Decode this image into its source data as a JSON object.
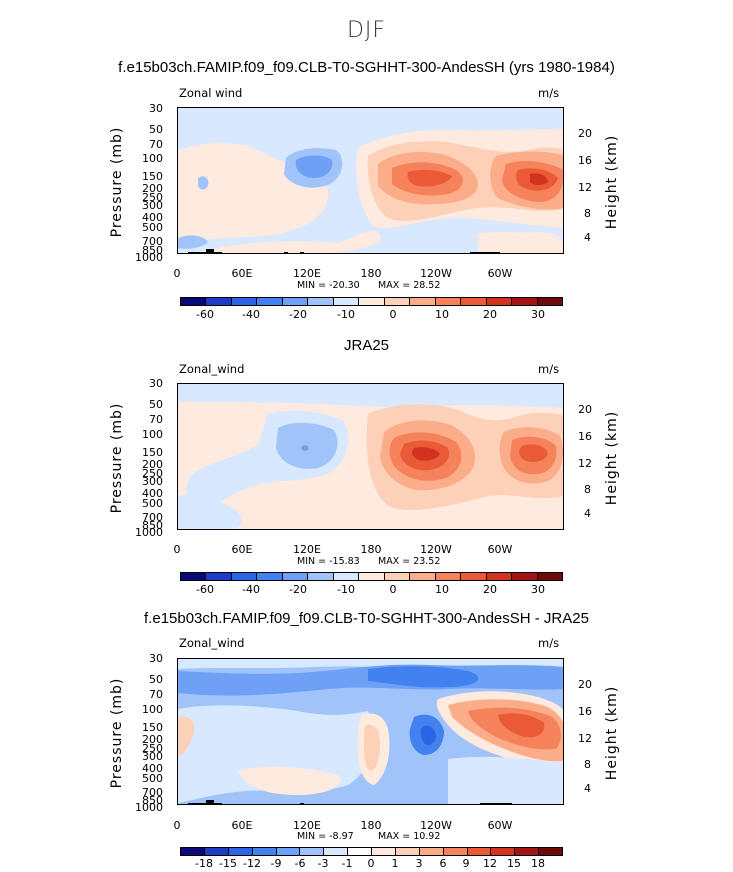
{
  "figure": {
    "title": "DJF"
  },
  "colors": {
    "neg": [
      "#0a0a78",
      "#1e3cc8",
      "#2d64e6",
      "#4182f0",
      "#6ea0f5",
      "#a0c3fa",
      "#d7e8ff"
    ],
    "pos": [
      "#ffeadf",
      "#fdd0b8",
      "#fbad8a",
      "#f5825a",
      "#ea5a37",
      "#d2321e",
      "#a51414",
      "#6e0a0a"
    ]
  },
  "chart_data": [
    {
      "type": "contour",
      "title": "f.e15b03ch.FAMIP.f09_f09.CLB-T0-SGHHT-300-AndesSH (yrs 1980-1984)",
      "left_caption": "Zonal wind",
      "units": "m/s",
      "ylabel": "Pressure (mb)",
      "ylabel_right": "Height (km)",
      "pressure_ticks": [
        "30",
        "50",
        "70",
        "100",
        "150",
        "200",
        "250",
        "300",
        "400",
        "500",
        "700",
        "850",
        "1000"
      ],
      "height_ticks": [
        "20",
        "16",
        "12",
        "8",
        "4"
      ],
      "x_ticks": [
        "0",
        "60E",
        "120E",
        "180",
        "120W",
        "60W"
      ],
      "min_label": "MIN = -20.30",
      "max_label": "MAX = 28.52",
      "min": -20.3,
      "max": 28.52,
      "colorbar_labels": [
        "-60",
        "-40",
        "-20",
        "-10",
        "0",
        "10",
        "20",
        "30"
      ]
    },
    {
      "type": "contour",
      "title": "JRA25",
      "left_caption": "Zonal_wind",
      "units": "m/s",
      "ylabel": "Pressure (mb)",
      "ylabel_right": "Height (km)",
      "pressure_ticks": [
        "30",
        "50",
        "70",
        "100",
        "150",
        "200",
        "250",
        "300",
        "400",
        "500",
        "700",
        "850",
        "1000"
      ],
      "height_ticks": [
        "20",
        "16",
        "12",
        "8",
        "4"
      ],
      "x_ticks": [
        "0",
        "60E",
        "120E",
        "180",
        "120W",
        "60W"
      ],
      "min_label": "MIN = -15.83",
      "max_label": "MAX = 23.52",
      "min": -15.83,
      "max": 23.52,
      "colorbar_labels": [
        "-60",
        "-40",
        "-20",
        "-10",
        "0",
        "10",
        "20",
        "30"
      ]
    },
    {
      "type": "contour",
      "title": "f.e15b03ch.FAMIP.f09_f09.CLB-T0-SGHHT-300-AndesSH - JRA25",
      "left_caption": "Zonal_wind",
      "units": "m/s",
      "ylabel": "Pressure (mb)",
      "ylabel_right": "Height (km)",
      "pressure_ticks": [
        "30",
        "50",
        "70",
        "100",
        "150",
        "200",
        "250",
        "300",
        "400",
        "500",
        "700",
        "850",
        "1000"
      ],
      "height_ticks": [
        "20",
        "16",
        "12",
        "8",
        "4"
      ],
      "x_ticks": [
        "0",
        "60E",
        "120E",
        "180",
        "120W",
        "60W"
      ],
      "min_label": "MIN = -8.97",
      "max_label": "MAX = 10.92",
      "min": -8.97,
      "max": 10.92,
      "colorbar_labels": [
        "-18",
        "-15",
        "-12",
        "-9",
        "-6",
        "-3",
        "-1",
        "0",
        "1",
        "3",
        "6",
        "9",
        "12",
        "15",
        "18"
      ]
    }
  ]
}
